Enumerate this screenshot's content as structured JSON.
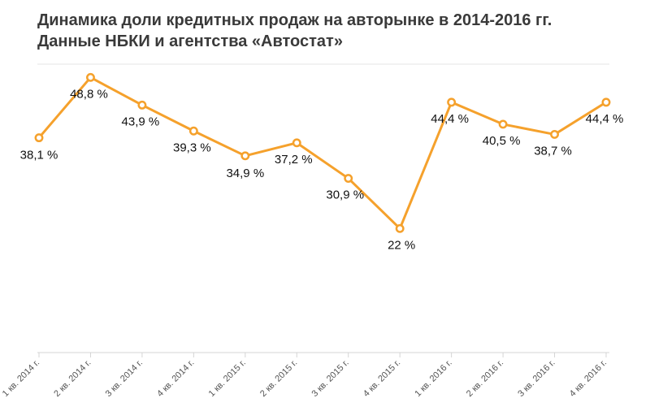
{
  "chart_data": {
    "type": "line",
    "title": "Динамика доли кредитных продаж на авторынке в 2014-2016 гг.",
    "subtitle": "Данные НБКИ и агентства «Автостат»",
    "xlabel": "",
    "ylabel": "",
    "grid": false,
    "legend": "none",
    "color": "#F5A12C",
    "categories": [
      "1 кв. 2014 г.",
      "2 кв. 2014 г.",
      "3 кв. 2014 г.",
      "4 кв. 2014 г.",
      "1 кв. 2015 г.",
      "2 кв. 2015 г.",
      "3 кв. 2015 г.",
      "4 кв. 2015 г.",
      "1 кв. 2016 г.",
      "2 кв. 2016 г.",
      "3 кв. 2016 г.",
      "4 кв. 2016 г."
    ],
    "values": [
      38.1,
      48.8,
      43.9,
      39.3,
      34.9,
      37.2,
      30.9,
      22,
      44.4,
      40.5,
      38.7,
      44.4
    ],
    "data_labels": [
      "38,1 %",
      "48,8 %",
      "43,9 %",
      "39,3 %",
      "34,9 %",
      "37,2 %",
      "30,9 %",
      "22 %",
      "44,4 %",
      "40,5 %",
      "38,7 %",
      "44,4 %"
    ],
    "ylim": [
      0,
      50
    ]
  }
}
